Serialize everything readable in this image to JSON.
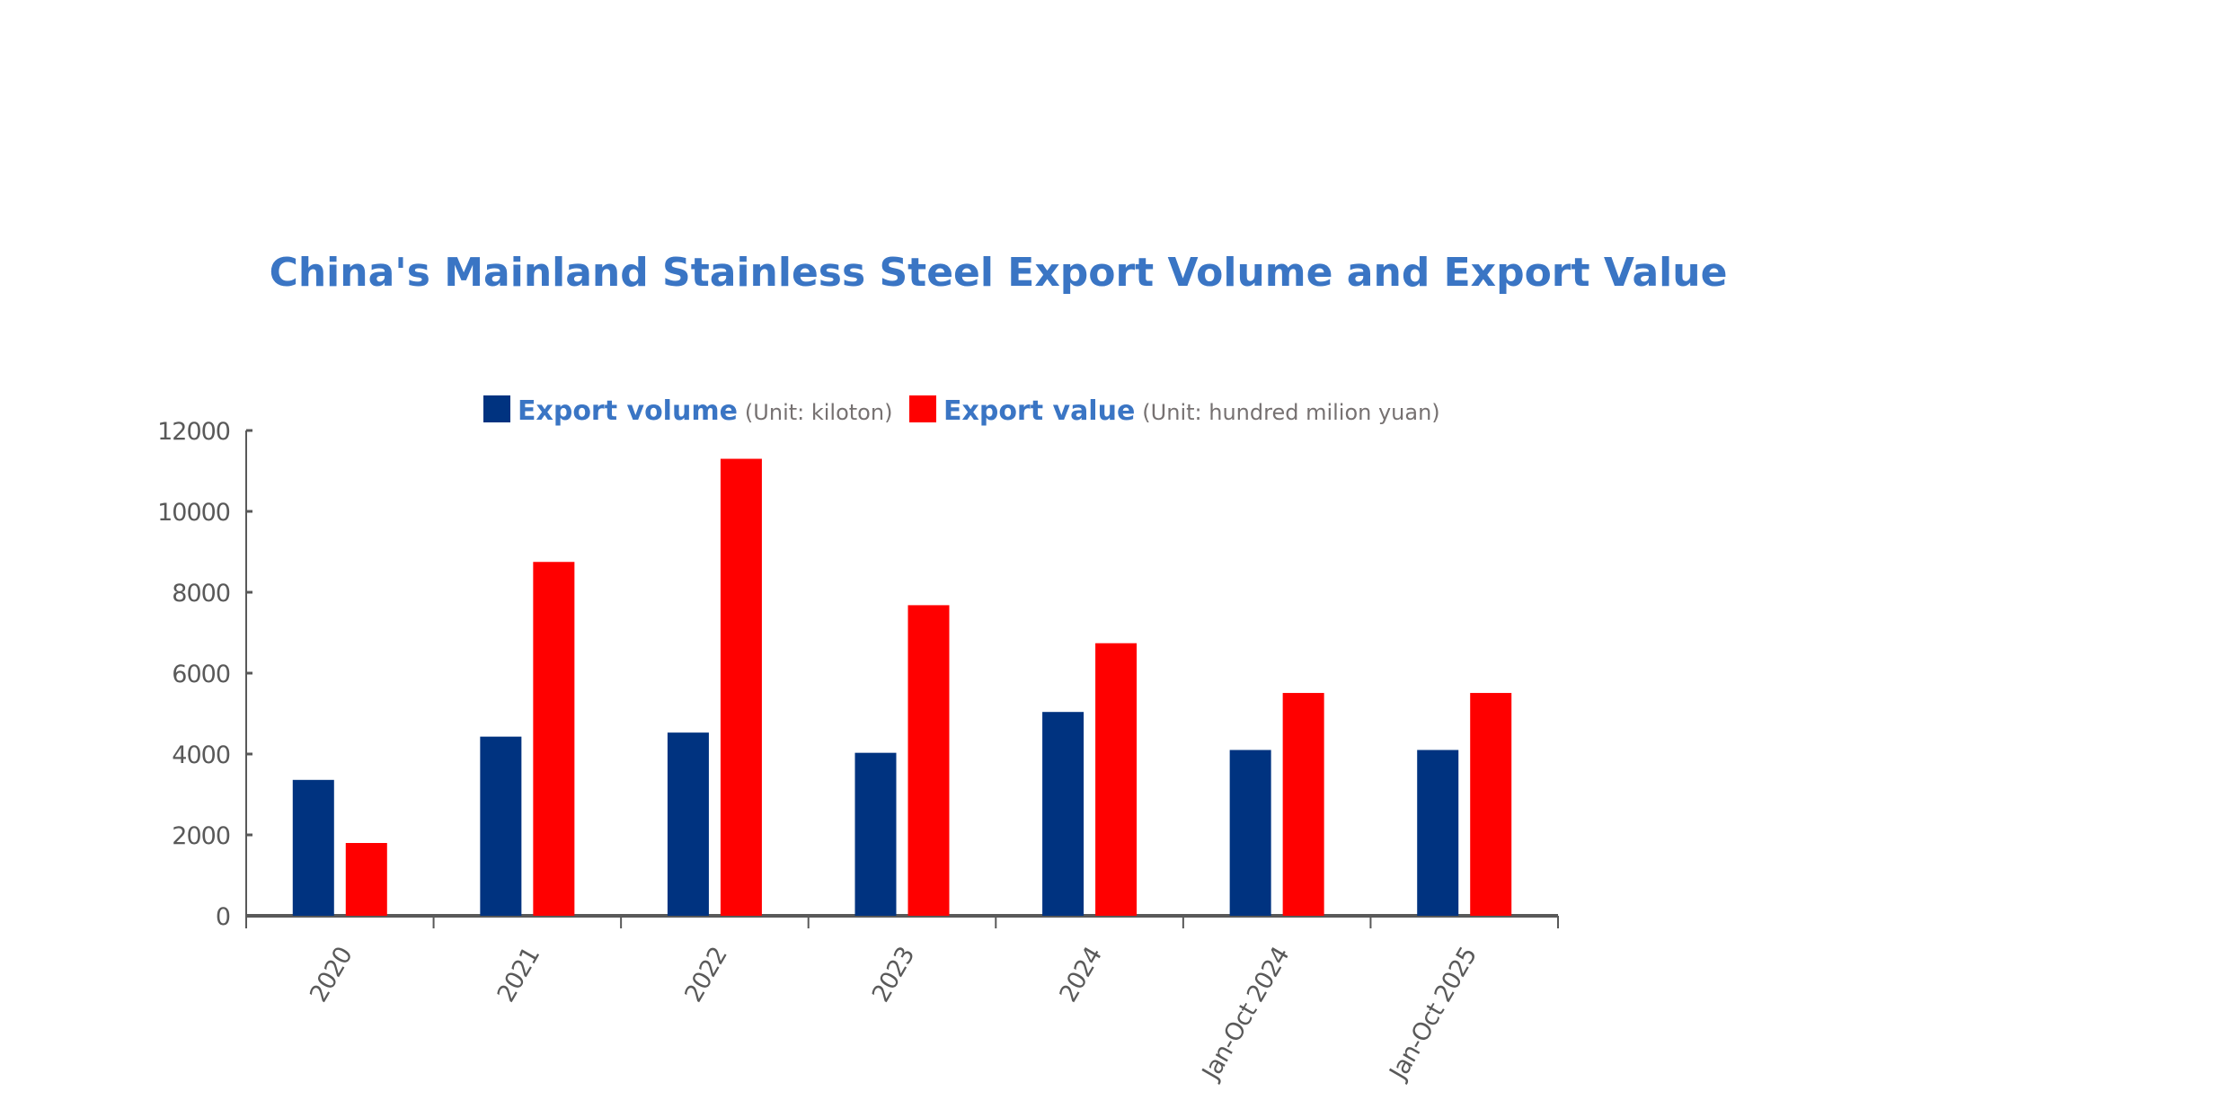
{
  "chart_data": {
    "type": "bar",
    "title": "China's Mainland Stainless Steel Export Volume and Export Value",
    "categories": [
      "2020",
      "2021",
      "2022",
      "2023",
      "2024",
      "Jan-Oct 2024",
      "Jan-Oct 2025"
    ],
    "series": [
      {
        "name": "Export volume",
        "unit": "(Unit: kiloton)",
        "color": "#003380",
        "values": [
          3360,
          4430,
          4530,
          4030,
          5040,
          4100,
          4100
        ]
      },
      {
        "name": "Export value",
        "unit": "(Unit: hundred milion yuan)",
        "color": "#ff0000",
        "values": [
          1800,
          8750,
          11300,
          7680,
          6740,
          5510,
          5510
        ]
      }
    ],
    "ylim": [
      0,
      12000
    ],
    "yticks": [
      "0",
      "2000",
      "4000",
      "6000",
      "8000",
      "10000",
      "12000"
    ],
    "xlabel": "",
    "ylabel": "",
    "grid": false,
    "legend": "top"
  }
}
